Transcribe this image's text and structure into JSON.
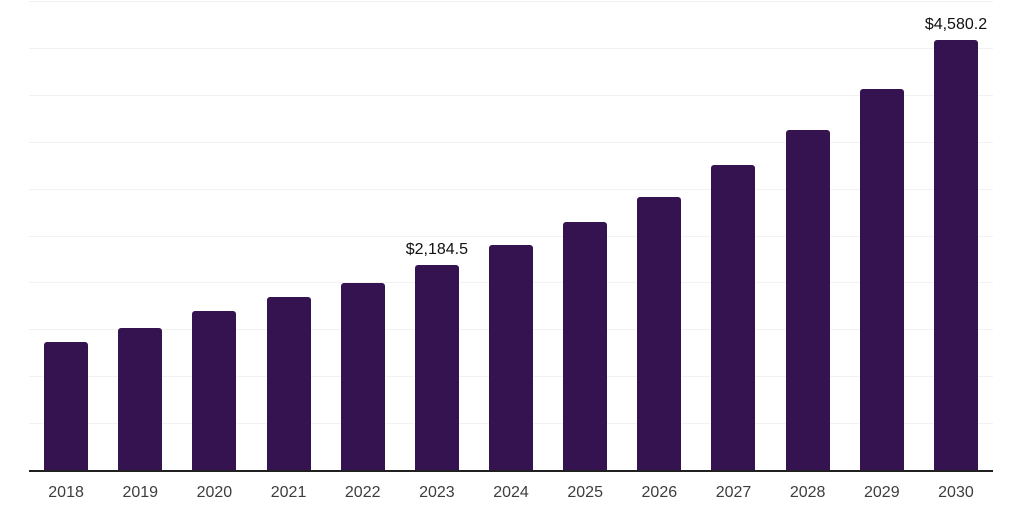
{
  "chart_data": {
    "type": "bar",
    "title": "",
    "xlabel": "",
    "ylabel": "",
    "categories": [
      "2018",
      "2019",
      "2020",
      "2021",
      "2022",
      "2023",
      "2024",
      "2025",
      "2026",
      "2027",
      "2028",
      "2029",
      "2030"
    ],
    "values": [
      1370,
      1510,
      1690,
      1840,
      1995,
      2184.5,
      2395,
      2645,
      2915,
      3250,
      3625,
      4060,
      4580.2
    ],
    "labeled_points": [
      {
        "index": 5,
        "label": "$2,184.5"
      },
      {
        "index": 12,
        "label": "$4,580.2"
      }
    ],
    "ylim": [
      0,
      5000
    ],
    "gridline_count": 10,
    "grid": "horizontal-only",
    "y_axis_labels_visible": false,
    "legend": "none",
    "colors": {
      "bar": "#351350",
      "gridline": "#f2f2f2",
      "axis_line": "#202020",
      "tick_label": "#3d3d3d",
      "value_label": "#111111",
      "background": "#ffffff"
    }
  }
}
